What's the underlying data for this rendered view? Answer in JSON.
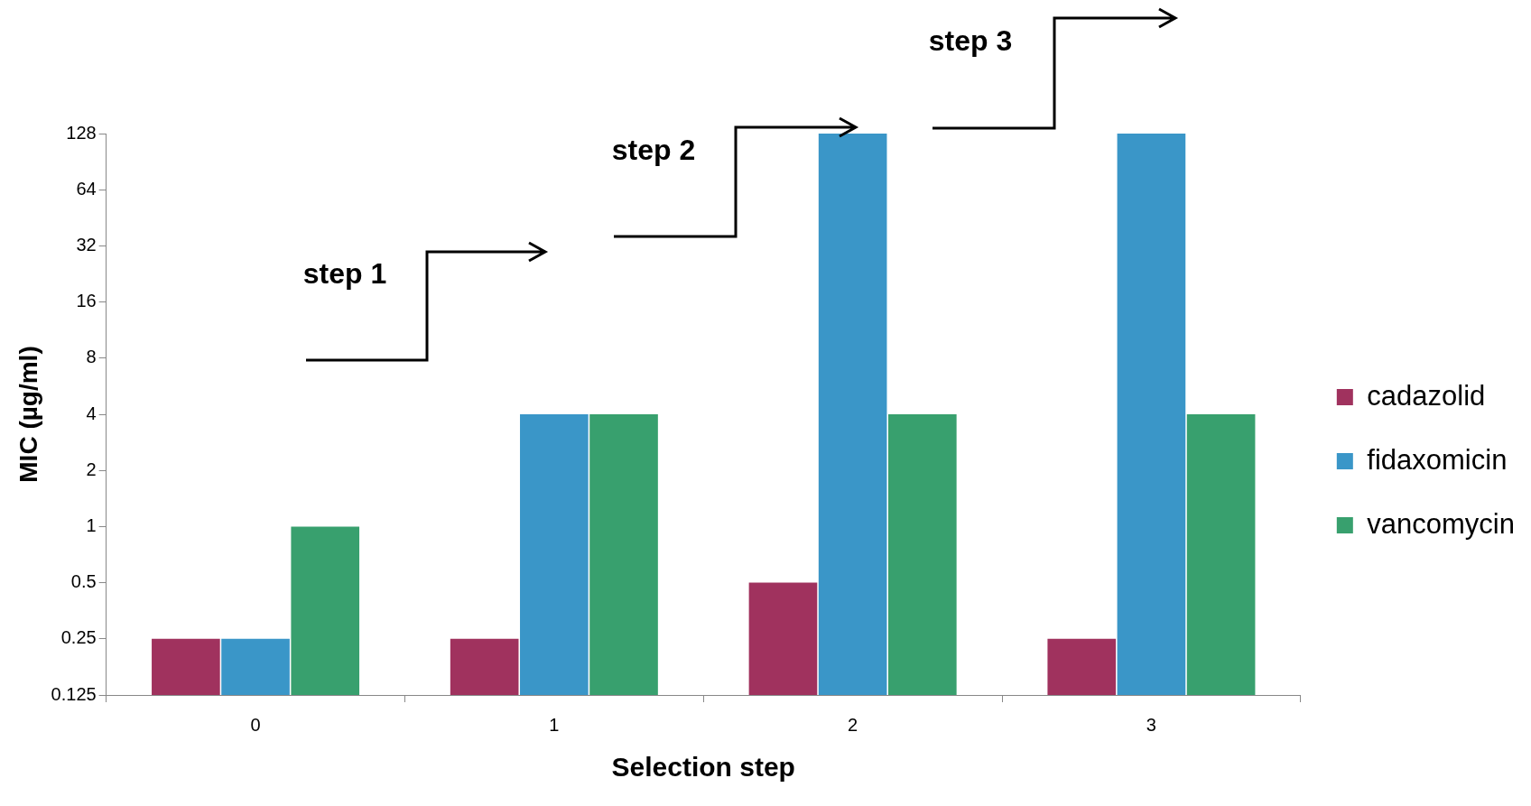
{
  "chart_data": {
    "type": "bar",
    "xlabel": "Selection step",
    "ylabel": "MIC (µg/ml)",
    "categories": [
      "0",
      "1",
      "2",
      "3"
    ],
    "series": [
      {
        "name": "cadazolid",
        "color": "#a0325e",
        "values": [
          0.25,
          0.25,
          0.5,
          0.25
        ]
      },
      {
        "name": "fidaxomicin",
        "color": "#3a96c8",
        "values": [
          0.25,
          4,
          128,
          128
        ]
      },
      {
        "name": "vancomycin",
        "color": "#38a06e",
        "values": [
          1,
          4,
          4,
          4
        ]
      }
    ],
    "log": "y",
    "ylim": [
      0.125,
      128
    ],
    "yticks": [
      0.125,
      0.25,
      0.5,
      1,
      2,
      4,
      8,
      16,
      32,
      64,
      128
    ],
    "grid": false,
    "legend": "right",
    "annotations": [
      "step 1",
      "step 2",
      "step 3"
    ]
  }
}
